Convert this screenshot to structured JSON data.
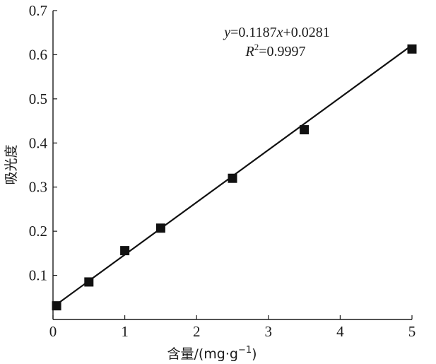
{
  "chart_data": {
    "type": "scatter",
    "xlabel": "含量/(mg·g",
    "xlabel_sup": "−1",
    "xlabel_close": ")",
    "ylabel": "吸光度",
    "xlim": [
      0,
      5
    ],
    "ylim": [
      0,
      0.7
    ],
    "x_ticks": [
      0,
      1,
      2,
      3,
      4,
      5
    ],
    "y_ticks": [
      0.1,
      0.2,
      0.3,
      0.4,
      0.5,
      0.6,
      0.7
    ],
    "grid": false,
    "legend": "none",
    "marker": "square",
    "marker_color": "#111111",
    "series": [
      {
        "x": [
          0.05,
          0.5,
          1.0,
          1.5,
          2.5,
          3.5,
          5.0
        ],
        "y": [
          0.031,
          0.085,
          0.156,
          0.207,
          0.32,
          0.43,
          0.613
        ]
      }
    ],
    "fit_line": {
      "slope": 0.1187,
      "intercept": 0.0281,
      "x_range": [
        0.05,
        5.0
      ]
    },
    "annotation": {
      "eq_y": "y",
      "eq_mid": "=0.1187",
      "eq_x": "x",
      "eq_end": "+0.0281",
      "r_letter": "R",
      "r_sup": "2",
      "r_val": "=0.9997"
    }
  }
}
